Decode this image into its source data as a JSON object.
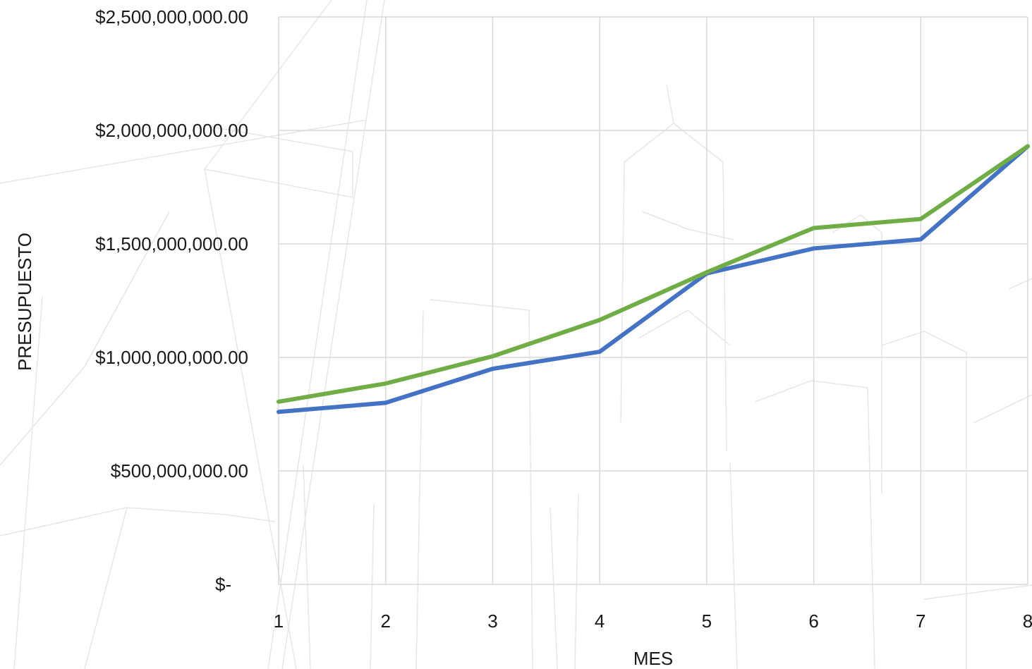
{
  "chart_data": {
    "type": "line",
    "title": "",
    "xlabel": "MES",
    "ylabel": "PRESUPUESTO",
    "x": [
      1,
      2,
      3,
      4,
      5,
      6,
      7,
      8
    ],
    "x_tick_labels": [
      "1",
      "2",
      "3",
      "4",
      "5",
      "6",
      "7",
      "8"
    ],
    "ylim": [
      0,
      2500000000
    ],
    "y_ticks": [
      0,
      500000000,
      1000000000,
      1500000000,
      2000000000,
      2500000000
    ],
    "y_tick_labels": [
      "$-",
      "$500,000,000.00",
      "$1,000,000,000.00",
      "$1,500,000,000.00",
      "$2,000,000,000.00",
      "$2,500,000,000.00"
    ],
    "grid": true,
    "legend": "none",
    "series": [
      {
        "color": "#4472c4",
        "values": [
          760000000,
          800000000,
          950000000,
          1025000000,
          1370000000,
          1480000000,
          1520000000,
          1930000000
        ]
      },
      {
        "color": "#70ad47",
        "values": [
          805000000,
          885000000,
          1005000000,
          1165000000,
          1375000000,
          1570000000,
          1610000000,
          1930000000
        ]
      }
    ]
  }
}
